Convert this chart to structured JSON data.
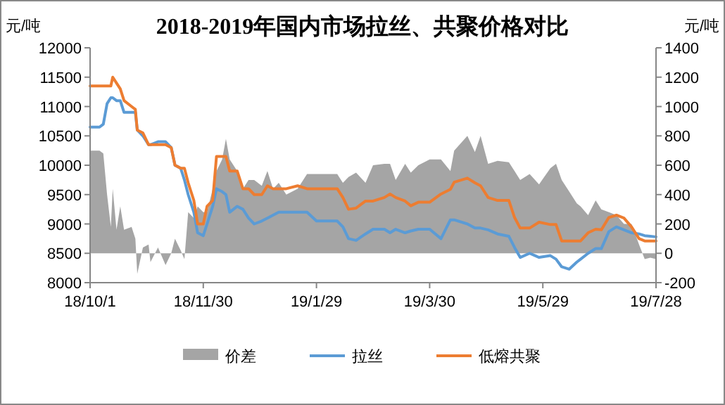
{
  "chart_data": {
    "type": "line",
    "title": "2018-2019年国内市场拉丝、共聚价格对比",
    "ylabel": "元/吨",
    "y2label": "元/吨",
    "x": [
      "2018-10-01",
      "2018-10-06",
      "2018-10-08",
      "2018-10-10",
      "2018-10-12",
      "2018-10-13",
      "2018-10-15",
      "2018-10-17",
      "2018-10-19",
      "2018-10-23",
      "2018-10-25",
      "2018-10-26",
      "2018-10-29",
      "2018-11-01",
      "2018-11-02",
      "2018-11-06",
      "2018-11-10",
      "2018-11-13",
      "2018-11-15",
      "2018-11-18",
      "2018-11-20",
      "2018-11-22",
      "2018-11-25",
      "2018-11-27",
      "2018-11-30",
      "2018-12-02",
      "2018-12-05",
      "2018-12-07",
      "2018-12-10",
      "2018-12-12",
      "2018-12-14",
      "2018-12-18",
      "2018-12-21",
      "2018-12-24",
      "2018-12-27",
      "2018-12-31",
      "2019-01-03",
      "2019-01-06",
      "2019-01-09",
      "2019-01-13",
      "2019-01-19",
      "2019-01-24",
      "2019-01-29",
      "2019-02-09",
      "2019-02-12",
      "2019-02-15",
      "2019-02-19",
      "2019-02-24",
      "2019-02-28",
      "2019-03-06",
      "2019-03-09",
      "2019-03-12",
      "2019-03-17",
      "2019-03-20",
      "2019-03-24",
      "2019-03-30",
      "2019-04-05",
      "2019-04-10",
      "2019-04-12",
      "2019-04-19",
      "2019-04-23",
      "2019-04-26",
      "2019-04-30",
      "2019-05-05",
      "2019-05-11",
      "2019-05-14",
      "2019-05-17",
      "2019-05-22",
      "2019-05-27",
      "2019-06-02",
      "2019-06-05",
      "2019-06-08",
      "2019-06-12",
      "2019-06-16",
      "2019-06-18",
      "2019-06-22",
      "2019-06-26",
      "2019-06-29",
      "2019-07-03",
      "2019-07-07",
      "2019-07-11",
      "2019-07-15",
      "2019-07-19",
      "2019-07-22",
      "2019-07-25",
      "2019-07-28"
    ],
    "series": [
      {
        "name": "价差",
        "type": "area",
        "axis": "y2",
        "color": "#a5a5a5",
        "values": [
          700,
          700,
          680,
          400,
          180,
          440,
          160,
          320,
          160,
          180,
          100,
          -140,
          40,
          60,
          -60,
          40,
          -80,
          0,
          100,
          20,
          -40,
          280,
          240,
          320,
          280,
          280,
          440,
          560,
          640,
          780,
          640,
          560,
          440,
          500,
          500,
          460,
          560,
          440,
          480,
          400,
          440,
          540,
          540,
          540,
          480,
          520,
          550,
          480,
          600,
          610,
          610,
          500,
          610,
          550,
          600,
          640,
          640,
          560,
          700,
          800,
          690,
          800,
          610,
          630,
          620,
          560,
          500,
          540,
          470,
          580,
          610,
          500,
          420,
          340,
          320,
          260,
          360,
          300,
          280,
          260,
          200,
          200,
          60,
          -40,
          -30,
          -40
        ]
      },
      {
        "name": "拉丝",
        "color": "#5b9bd5",
        "values": [
          10650,
          10650,
          10700,
          11050,
          11150,
          11150,
          11100,
          11100,
          10900,
          10900,
          10900,
          10600,
          10500,
          10350,
          10350,
          10400,
          10400,
          10300,
          10000,
          9950,
          9750,
          9500,
          9200,
          8850,
          8800,
          9000,
          9300,
          9600,
          9550,
          9500,
          9200,
          9300,
          9250,
          9100,
          9000,
          9050,
          9100,
          9150,
          9200,
          9200,
          9200,
          9200,
          9050,
          9050,
          8950,
          8750,
          8720,
          8830,
          8910,
          8910,
          8850,
          8910,
          8850,
          8880,
          8910,
          8910,
          8750,
          9070,
          9070,
          9000,
          8930,
          8930,
          8900,
          8830,
          8790,
          8600,
          8430,
          8500,
          8430,
          8460,
          8400,
          8270,
          8230,
          8350,
          8400,
          8500,
          8580,
          8580,
          8870,
          8950,
          8900,
          8850,
          8830,
          8800,
          8790,
          8780
        ]
      },
      {
        "name": "低熔共聚",
        "color": "#ed7d31",
        "values": [
          11350,
          11350,
          11350,
          11350,
          11350,
          11500,
          11400,
          11300,
          11100,
          11000,
          10950,
          10600,
          10550,
          10350,
          10350,
          10350,
          10350,
          10300,
          10000,
          9950,
          9950,
          9700,
          9400,
          9000,
          9000,
          9300,
          9400,
          10150,
          10150,
          10150,
          9900,
          9900,
          9600,
          9600,
          9500,
          9500,
          9650,
          9600,
          9600,
          9600,
          9650,
          9600,
          9600,
          9600,
          9450,
          9250,
          9270,
          9390,
          9390,
          9450,
          9510,
          9450,
          9390,
          9310,
          9370,
          9370,
          9510,
          9590,
          9710,
          9780,
          9700,
          9650,
          9450,
          9400,
          9400,
          9110,
          8930,
          8930,
          9030,
          8990,
          8990,
          8710,
          8710,
          8710,
          8710,
          8850,
          8910,
          8900,
          9110,
          9150,
          9100,
          8950,
          8750,
          8710,
          8710,
          8710
        ]
      }
    ],
    "xlim": [
      "2018-10-01",
      "2019-07-28"
    ],
    "xticks": [
      {
        "value": "2018-10-01",
        "label": "18/10/1"
      },
      {
        "value": "2018-11-30",
        "label": "18/11/30"
      },
      {
        "value": "2019-01-29",
        "label": "19/1/29"
      },
      {
        "value": "2019-03-30",
        "label": "19/3/30"
      },
      {
        "value": "2019-05-29",
        "label": "19/5/29"
      },
      {
        "value": "2019-07-28",
        "label": "19/7/28"
      }
    ],
    "ylim": [
      8000,
      12000
    ],
    "yticks": [
      8000,
      8500,
      9000,
      9500,
      10000,
      10500,
      11000,
      11500,
      12000
    ],
    "y2lim": [
      -200,
      1400
    ],
    "y2ticks": [
      -200,
      0,
      200,
      400,
      600,
      800,
      1000,
      1200,
      1400
    ],
    "legend": "bottom",
    "grid": false
  }
}
